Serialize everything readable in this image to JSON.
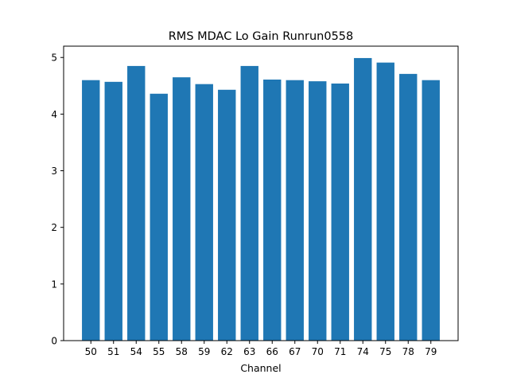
{
  "chart_data": {
    "type": "bar",
    "title": "RMS MDAC Lo Gain Runrun0558",
    "xlabel": "Channel",
    "ylabel": "",
    "categories": [
      "50",
      "51",
      "54",
      "55",
      "58",
      "59",
      "62",
      "63",
      "66",
      "67",
      "70",
      "71",
      "74",
      "75",
      "78",
      "79"
    ],
    "values": [
      4.6,
      4.57,
      4.85,
      4.36,
      4.65,
      4.53,
      4.43,
      4.85,
      4.61,
      4.6,
      4.58,
      4.54,
      4.99,
      4.91,
      4.71,
      4.6
    ],
    "ylim": [
      0,
      5.2
    ],
    "yticks": [
      "0",
      "1",
      "2",
      "3",
      "4",
      "5"
    ],
    "bar_color": "#1f77b4",
    "grid": false,
    "legend": "none"
  }
}
